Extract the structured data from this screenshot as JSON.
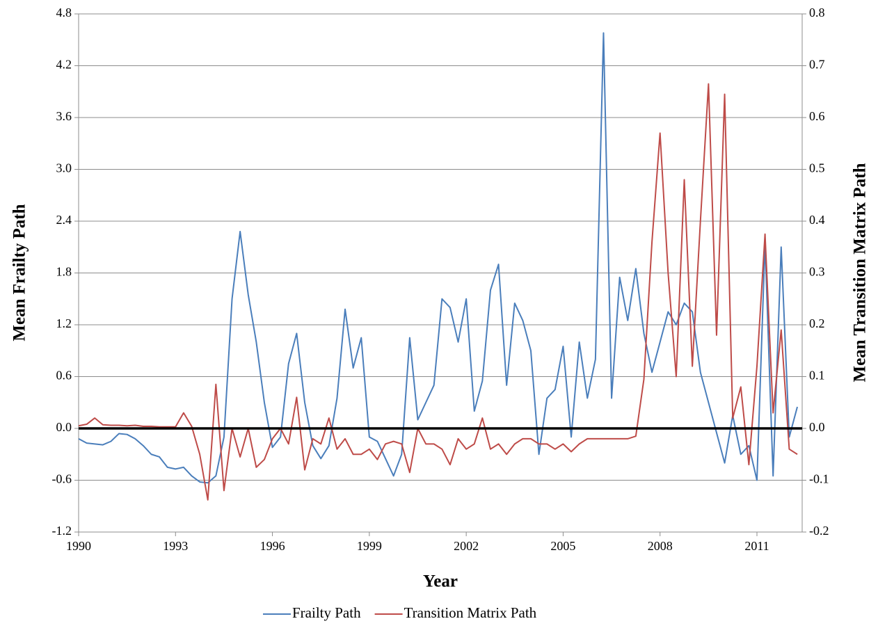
{
  "chart_data": {
    "type": "line",
    "x_label": "Year",
    "y_label": "Mean Frailty Path",
    "y2_label": "Mean Transition Matrix Path",
    "xlim": [
      1990,
      2012.4
    ],
    "xticks": [
      1990,
      1993,
      1996,
      1999,
      2002,
      2005,
      2008,
      2011
    ],
    "ylim": [
      -1.2,
      4.8
    ],
    "yticks": [
      -1.2,
      -0.6,
      {
        "value": 0,
        "label": "0.0"
      },
      0.6,
      1.2,
      1.8,
      2.4,
      {
        "value": 3,
        "label": "3.0"
      },
      3.6,
      4.2,
      4.8
    ],
    "y2lim": [
      -0.2,
      0.8
    ],
    "y2ticks": [
      -0.2,
      -0.1,
      {
        "value": 0,
        "label": "0.0"
      },
      0.1,
      0.2,
      0.3,
      0.4,
      0.5,
      0.6,
      0.7,
      0.8
    ],
    "grid": true,
    "legend": "bottom",
    "x": [
      1990,
      1990.25,
      1990.5,
      1990.75,
      1991,
      1991.25,
      1991.5,
      1991.75,
      1992,
      1992.25,
      1992.5,
      1992.75,
      1993,
      1993.25,
      1993.5,
      1993.75,
      1994,
      1994.25,
      1994.5,
      1994.75,
      1995,
      1995.25,
      1995.5,
      1995.75,
      1996,
      1996.25,
      1996.5,
      1996.75,
      1997,
      1997.25,
      1997.5,
      1997.75,
      1998,
      1998.25,
      1998.5,
      1998.75,
      1999,
      1999.25,
      1999.5,
      1999.75,
      2000,
      2000.25,
      2000.5,
      2000.75,
      2001,
      2001.25,
      2001.5,
      2001.75,
      2002,
      2002.25,
      2002.5,
      2002.75,
      2003,
      2003.25,
      2003.5,
      2003.75,
      2004,
      2004.25,
      2004.5,
      2004.75,
      2005,
      2005.25,
      2005.5,
      2005.75,
      2006,
      2006.25,
      2006.5,
      2006.75,
      2007,
      2007.25,
      2007.5,
      2007.75,
      2008,
      2008.25,
      2008.5,
      2008.75,
      2009,
      2009.25,
      2009.5,
      2009.75,
      2010,
      2010.25,
      2010.5,
      2010.75,
      2011,
      2011.25,
      2011.5,
      2011.75,
      2012,
      2012.25
    ],
    "series": [
      {
        "name": "Frailty Path",
        "color": "#4a7ebb",
        "axis": "y",
        "values": [
          -0.12,
          -0.17,
          -0.18,
          -0.19,
          -0.15,
          -0.06,
          -0.07,
          -0.12,
          -0.2,
          -0.3,
          -0.33,
          -0.45,
          -0.47,
          -0.45,
          -0.55,
          -0.62,
          -0.63,
          -0.55,
          -0.1,
          1.5,
          2.28,
          1.55,
          1.0,
          0.3,
          -0.22,
          -0.1,
          0.75,
          1.1,
          0.3,
          -0.2,
          -0.35,
          -0.2,
          0.35,
          1.38,
          0.7,
          1.05,
          -0.1,
          -0.15,
          -0.35,
          -0.55,
          -0.3,
          1.05,
          0.1,
          0.3,
          0.5,
          1.5,
          1.4,
          1.0,
          1.5,
          0.2,
          0.55,
          1.6,
          1.9,
          0.5,
          1.45,
          1.25,
          0.9,
          -0.3,
          0.35,
          0.45,
          0.95,
          -0.1,
          1.0,
          0.35,
          0.8,
          4.58,
          0.35,
          1.75,
          1.25,
          1.85,
          1.1,
          0.65,
          1.0,
          1.35,
          1.2,
          1.45,
          1.35,
          0.65,
          0.3,
          -0.05,
          -0.4,
          0.15,
          -0.3,
          -0.2,
          -0.6,
          2.15,
          -0.55,
          2.1,
          -0.1,
          0.25
        ]
      },
      {
        "name": "Transition Matrix Path",
        "color": "#be4b48",
        "axis": "y2",
        "values": [
          0.005,
          0.008,
          0.02,
          0.007,
          0.006,
          0.006,
          0.005,
          0.006,
          0.004,
          0.004,
          0.003,
          0.003,
          0.003,
          0.03,
          0.004,
          -0.05,
          -0.138,
          0.085,
          -0.12,
          0.0,
          -0.055,
          0.0,
          -0.075,
          -0.06,
          -0.02,
          0.0,
          -0.03,
          0.06,
          -0.08,
          -0.02,
          -0.03,
          0.02,
          -0.04,
          -0.02,
          -0.05,
          -0.05,
          -0.04,
          -0.06,
          -0.03,
          -0.025,
          -0.03,
          -0.085,
          0.0,
          -0.03,
          -0.03,
          -0.04,
          -0.07,
          -0.02,
          -0.04,
          -0.03,
          0.02,
          -0.04,
          -0.03,
          -0.05,
          -0.03,
          -0.02,
          -0.02,
          -0.03,
          -0.03,
          -0.04,
          -0.03,
          -0.045,
          -0.03,
          -0.02,
          -0.02,
          -0.02,
          -0.02,
          -0.02,
          -0.02,
          -0.015,
          0.095,
          0.36,
          0.57,
          0.3,
          0.1,
          0.48,
          0.12,
          0.4,
          0.665,
          0.18,
          0.645,
          0.02,
          0.08,
          -0.07,
          0.12,
          0.375,
          0.03,
          0.19,
          -0.04,
          -0.05
        ]
      }
    ]
  }
}
